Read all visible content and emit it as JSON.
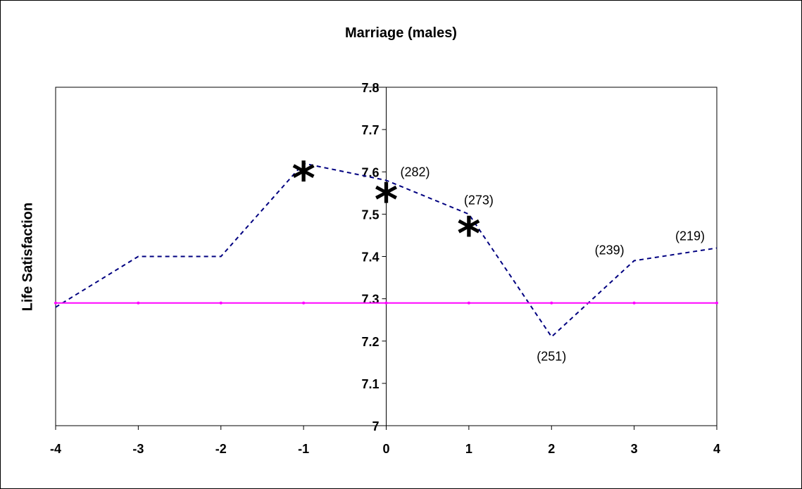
{
  "chart_data": {
    "type": "line",
    "title": "Marriage (males)",
    "ylabel": "Life Satisfaction",
    "xlabel": "",
    "xlim": [
      -4,
      4
    ],
    "ylim": [
      7.0,
      7.8
    ],
    "x_ticks": [
      -4,
      -3,
      -2,
      -1,
      0,
      1,
      2,
      3,
      4
    ],
    "y_ticks": [
      7,
      7.1,
      7.2,
      7.3,
      7.4,
      7.5,
      7.6,
      7.7,
      7.8
    ],
    "y_tick_labels": [
      "7",
      "7.1",
      "7.2",
      "7.3",
      "7.4",
      "7.5",
      "7.6",
      "7.7",
      "7.8"
    ],
    "grid": false,
    "series": [
      {
        "style": "dashed",
        "color": "#000080",
        "x": [
          -4,
          -3,
          -2,
          -1,
          0,
          1,
          2,
          3,
          4
        ],
        "y": [
          7.28,
          7.4,
          7.4,
          7.62,
          7.58,
          7.5,
          7.21,
          7.39,
          7.42
        ]
      },
      {
        "style": "solid",
        "color": "#ff00ff",
        "x": [
          -4,
          -3,
          -2,
          -1,
          0,
          1,
          2,
          3,
          4
        ],
        "y": [
          7.29,
          7.29,
          7.29,
          7.29,
          7.29,
          7.29,
          7.29,
          7.29,
          7.29
        ]
      }
    ],
    "significance_markers": [
      {
        "x": -1,
        "y": 7.62,
        "symbol": "*"
      },
      {
        "x": 0,
        "y": 7.57,
        "symbol": "*"
      },
      {
        "x": 1,
        "y": 7.49,
        "symbol": "*"
      }
    ],
    "annotations": [
      {
        "x": 0,
        "y": 7.58,
        "text": "(282)"
      },
      {
        "x": 1,
        "y": 7.5,
        "text": "(273)"
      },
      {
        "x": 2,
        "y": 7.21,
        "text": "(251)"
      },
      {
        "x": 3,
        "y": 7.39,
        "text": "(239)"
      },
      {
        "x": 4,
        "y": 7.42,
        "text": "(219)"
      }
    ]
  }
}
